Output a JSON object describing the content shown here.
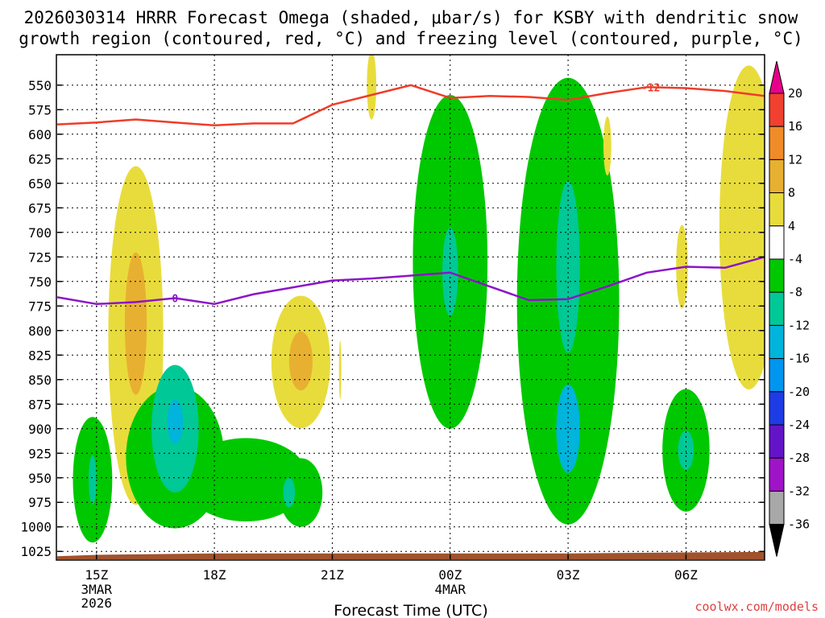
{
  "chart_data": {
    "type": "time-height contour",
    "title_line1": "2026030314 HRRR Forecast Omega (shaded, μbar/s) for KSBY with dendritic snow",
    "title_line2": "growth region (contoured, red, °C) and freezing level (contoured, purple, °C)",
    "xlabel": "Forecast Time (UTC)",
    "ylabel": "Pressure (hPa)",
    "credit": "coolwx.com/models",
    "x_range_hours": [
      14.0,
      32.0
    ],
    "y_range_hpa": [
      1033,
      519
    ],
    "y_ticks": [
      550,
      575,
      600,
      625,
      650,
      675,
      700,
      725,
      750,
      775,
      800,
      825,
      850,
      875,
      900,
      925,
      950,
      975,
      1000,
      1025
    ],
    "x_ticks": [
      {
        "hour": 15,
        "label": "15Z",
        "sub1": "3MAR",
        "sub2": "2026"
      },
      {
        "hour": 18,
        "label": "18Z",
        "sub1": "",
        "sub2": ""
      },
      {
        "hour": 21,
        "label": "21Z",
        "sub1": "",
        "sub2": ""
      },
      {
        "hour": 24,
        "label": "00Z",
        "sub1": "4MAR",
        "sub2": ""
      },
      {
        "hour": 27,
        "label": "03Z",
        "sub1": "",
        "sub2": ""
      },
      {
        "hour": 30,
        "label": "06Z",
        "sub1": "",
        "sub2": ""
      }
    ],
    "colorbar": {
      "labels": [
        "20",
        "16",
        "12",
        "8",
        "4",
        "-4",
        "-8",
        "-12",
        "-16",
        "-20",
        "-24",
        "-28",
        "-32",
        "-36"
      ],
      "colors": [
        "#e8008a",
        "#f04030",
        "#f08c28",
        "#e8b030",
        "#e8dc3c",
        "#ffffff",
        "#00c800",
        "#00c896",
        "#00b4dc",
        "#0096f0",
        "#1e3ce6",
        "#6414c8",
        "#a014c8",
        "#a8a8a8",
        "#000000"
      ]
    },
    "dendritic_line": {
      "label": "-12",
      "points": [
        [
          14.0,
          590
        ],
        [
          15.0,
          588
        ],
        [
          16.0,
          585
        ],
        [
          17.0,
          588
        ],
        [
          18.0,
          591
        ],
        [
          19.0,
          589
        ],
        [
          20.0,
          589
        ],
        [
          21.0,
          570
        ],
        [
          22.0,
          560
        ],
        [
          23.0,
          550
        ],
        [
          24.0,
          563
        ],
        [
          25.0,
          561
        ],
        [
          26.0,
          562
        ],
        [
          27.0,
          565
        ],
        [
          28.0,
          558
        ],
        [
          29.0,
          552
        ],
        [
          30.0,
          553
        ],
        [
          31.0,
          556
        ],
        [
          32.0,
          561
        ]
      ]
    },
    "freezing_line": {
      "label": "0",
      "points": [
        [
          14.0,
          766
        ],
        [
          15.0,
          773
        ],
        [
          16.0,
          771
        ],
        [
          17.0,
          767
        ],
        [
          18.0,
          773
        ],
        [
          19.0,
          763
        ],
        [
          20.0,
          756
        ],
        [
          21.0,
          749
        ],
        [
          22.0,
          747
        ],
        [
          23.0,
          744
        ],
        [
          24.0,
          741
        ],
        [
          25.0,
          755
        ],
        [
          26.0,
          769
        ],
        [
          27.0,
          768
        ],
        [
          28.0,
          755
        ],
        [
          29.0,
          741
        ],
        [
          30.0,
          735
        ],
        [
          31.0,
          736
        ],
        [
          32.0,
          725
        ]
      ]
    },
    "omega_features": [
      {
        "hour": 14.9,
        "p": 952,
        "width_h": 0.5,
        "depth_hpa": 128,
        "value": -8
      },
      {
        "hour": 14.9,
        "p": 952,
        "width_h": 0.1,
        "depth_hpa": 50,
        "value": -12
      },
      {
        "hour": 16.0,
        "p": 805,
        "width_h": 0.7,
        "depth_hpa": 345,
        "value": 4
      },
      {
        "hour": 16.0,
        "p": 793,
        "width_h": 0.28,
        "depth_hpa": 145,
        "value": 8
      },
      {
        "hour": 17.0,
        "p": 929,
        "width_h": 1.25,
        "depth_hpa": 145,
        "value": -8
      },
      {
        "hour": 18.8,
        "p": 952,
        "width_h": 1.6,
        "depth_hpa": 85,
        "value": -8
      },
      {
        "hour": 17.0,
        "p": 900,
        "width_h": 0.6,
        "depth_hpa": 130,
        "value": -12
      },
      {
        "hour": 17.0,
        "p": 893,
        "width_h": 0.2,
        "depth_hpa": 45,
        "value": -16
      },
      {
        "hour": 20.2,
        "p": 965,
        "width_h": 0.55,
        "depth_hpa": 70,
        "value": -8
      },
      {
        "hour": 19.9,
        "p": 965,
        "width_h": 0.15,
        "depth_hpa": 30,
        "value": -12
      },
      {
        "hour": 20.2,
        "p": 832,
        "width_h": 0.75,
        "depth_hpa": 135,
        "value": 4
      },
      {
        "hour": 20.2,
        "p": 831,
        "width_h": 0.3,
        "depth_hpa": 60,
        "value": 8
      },
      {
        "hour": 24.0,
        "p": 730,
        "width_h": 0.95,
        "depth_hpa": 340,
        "value": -8
      },
      {
        "hour": 24.0,
        "p": 740,
        "width_h": 0.2,
        "depth_hpa": 90,
        "value": -12
      },
      {
        "hour": 27.0,
        "p": 770,
        "width_h": 1.3,
        "depth_hpa": 455,
        "value": -8
      },
      {
        "hour": 27.0,
        "p": 735,
        "width_h": 0.3,
        "depth_hpa": 175,
        "value": -12
      },
      {
        "hour": 27.0,
        "p": 900,
        "width_h": 0.3,
        "depth_hpa": 90,
        "value": -16
      },
      {
        "hour": 30.0,
        "p": 922,
        "width_h": 0.6,
        "depth_hpa": 125,
        "value": -8
      },
      {
        "hour": 30.0,
        "p": 922,
        "width_h": 0.2,
        "depth_hpa": 40,
        "value": -12
      },
      {
        "hour": 31.6,
        "p": 695,
        "width_h": 0.75,
        "depth_hpa": 330,
        "value": 4
      },
      {
        "hour": 29.9,
        "p": 735,
        "width_h": 0.15,
        "depth_hpa": 85,
        "value": 4
      },
      {
        "hour": 28.0,
        "p": 612,
        "width_h": 0.1,
        "depth_hpa": 60,
        "value": 4
      },
      {
        "hour": 22.0,
        "p": 550,
        "width_h": 0.12,
        "depth_hpa": 70,
        "value": 4
      },
      {
        "hour": 21.2,
        "p": 840,
        "width_h": 0.03,
        "depth_hpa": 60,
        "value": 4
      }
    ]
  }
}
